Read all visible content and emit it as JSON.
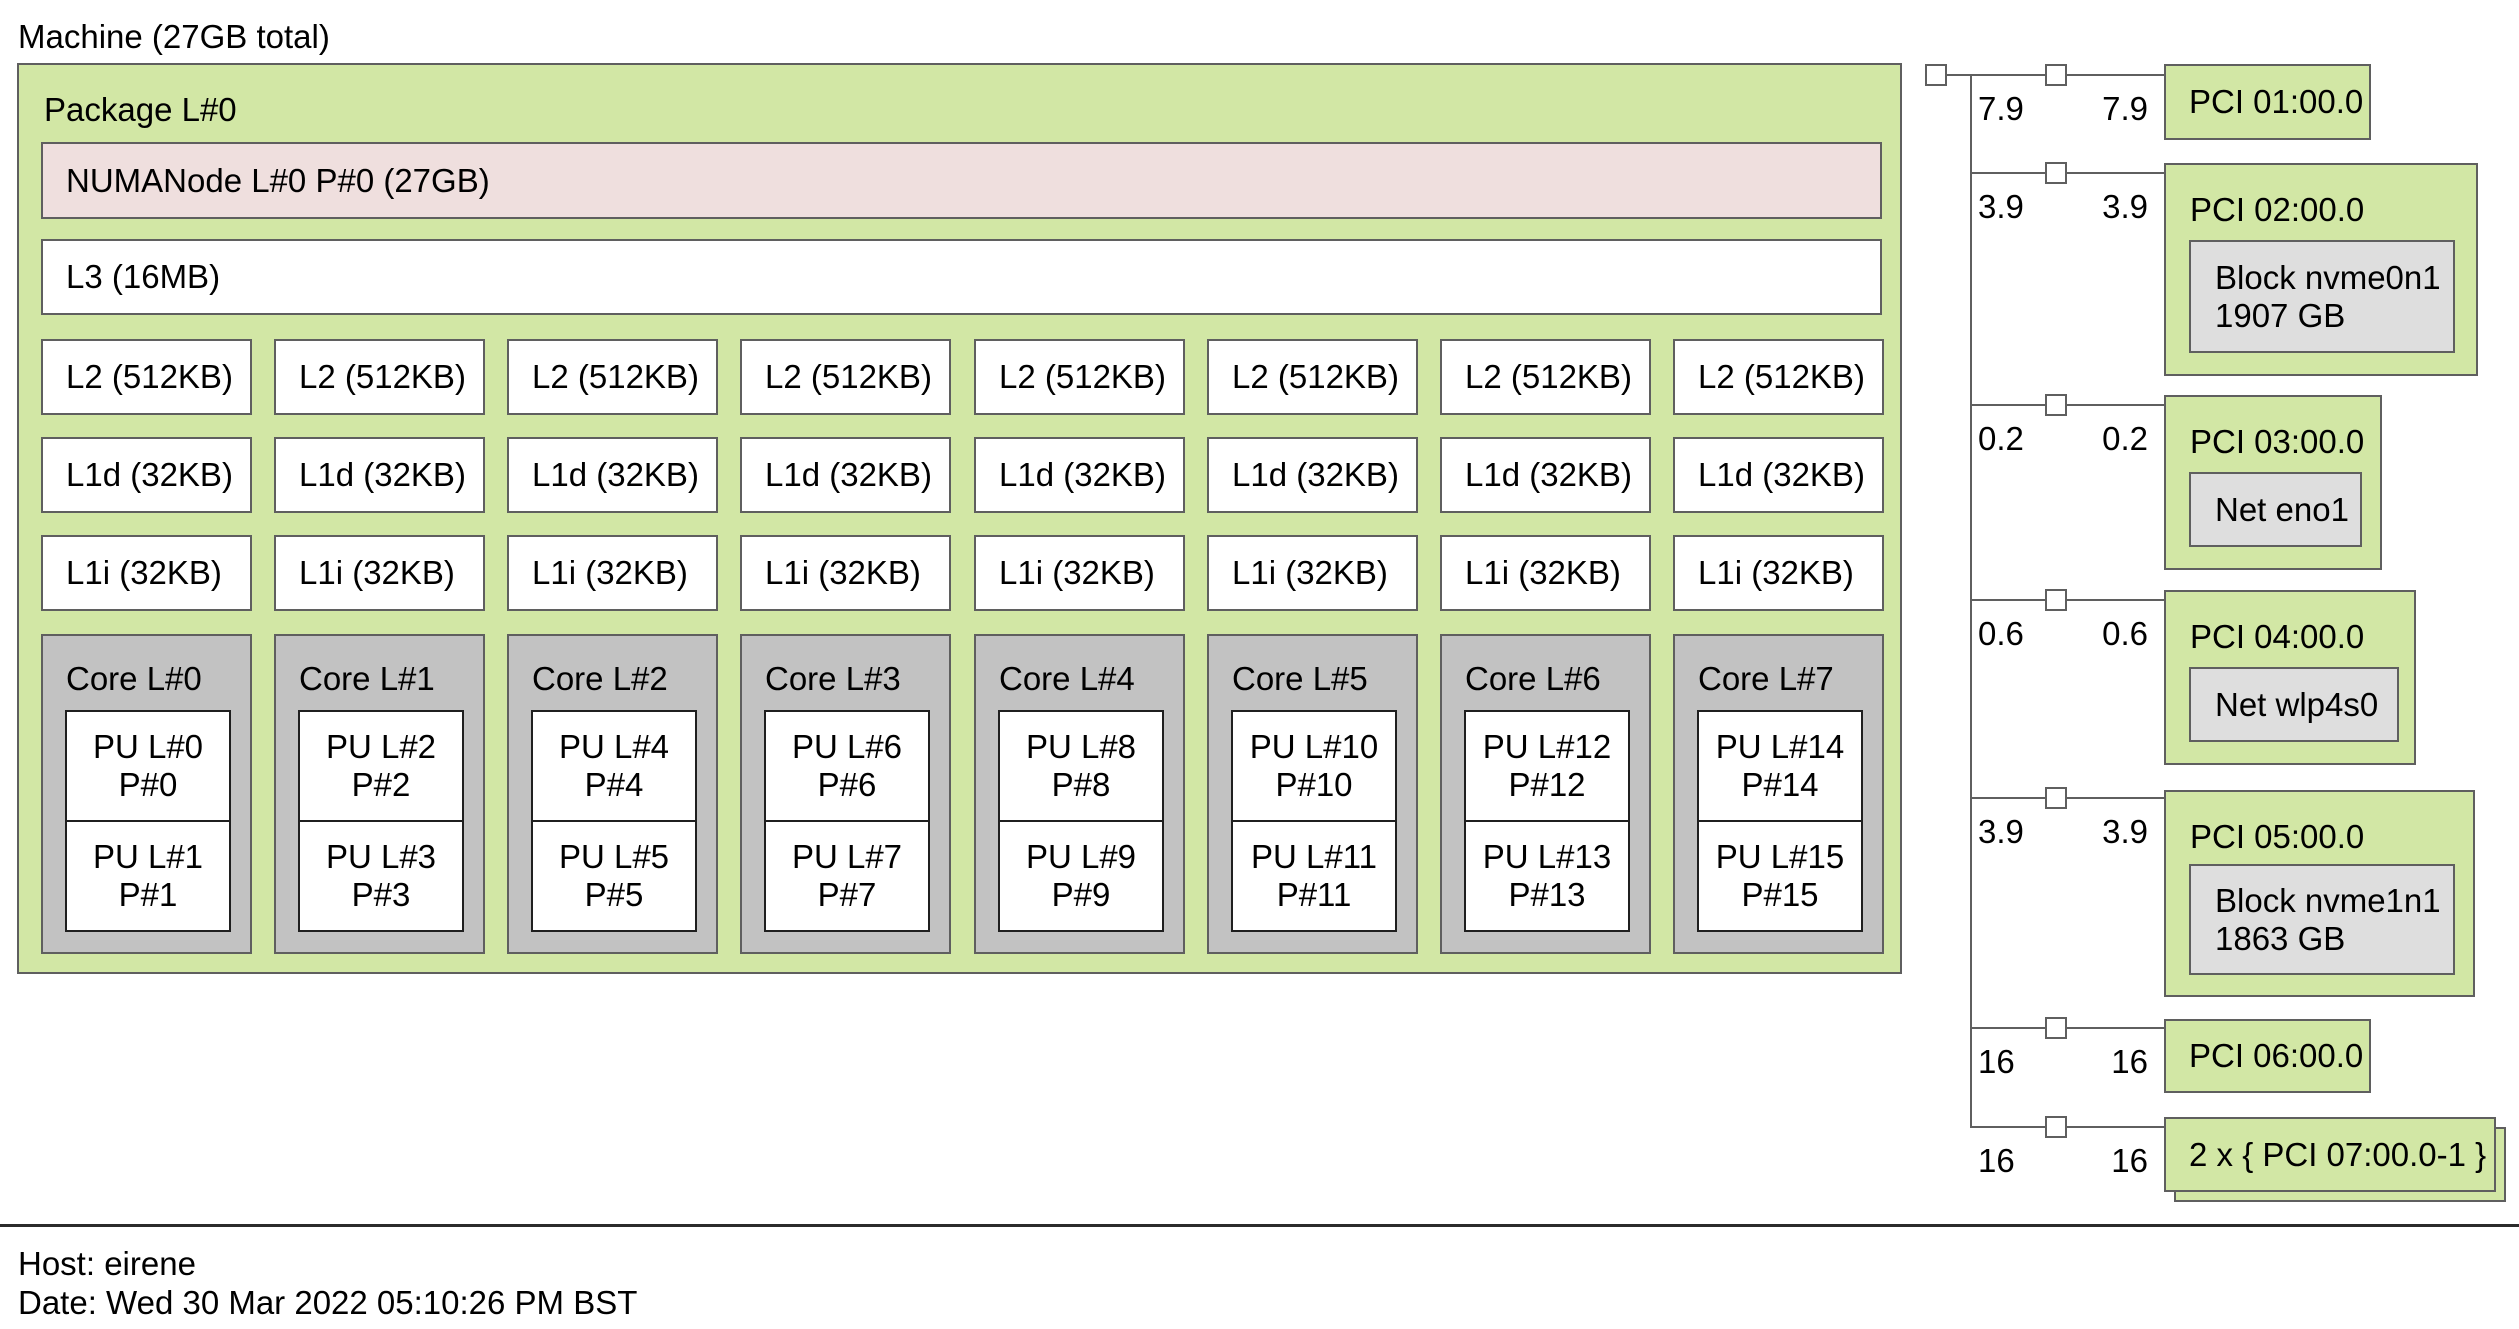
{
  "machine": {
    "label": "Machine (27GB total)"
  },
  "package": {
    "label": "Package L#0",
    "numanode_label": "NUMANode L#0 P#0 (27GB)",
    "l3_label": "L3 (16MB)"
  },
  "columns": [
    {
      "l2": "L2 (512KB)",
      "l1d": "L1d (32KB)",
      "l1i": "L1i (32KB)",
      "core": "Core L#0",
      "pu_top_line1": "PU L#0",
      "pu_top_line2": "P#0",
      "pu_bottom_line1": "PU L#1",
      "pu_bottom_line2": "P#1"
    },
    {
      "l2": "L2 (512KB)",
      "l1d": "L1d (32KB)",
      "l1i": "L1i (32KB)",
      "core": "Core L#1",
      "pu_top_line1": "PU L#2",
      "pu_top_line2": "P#2",
      "pu_bottom_line1": "PU L#3",
      "pu_bottom_line2": "P#3"
    },
    {
      "l2": "L2 (512KB)",
      "l1d": "L1d (32KB)",
      "l1i": "L1i (32KB)",
      "core": "Core L#2",
      "pu_top_line1": "PU L#4",
      "pu_top_line2": "P#4",
      "pu_bottom_line1": "PU L#5",
      "pu_bottom_line2": "P#5"
    },
    {
      "l2": "L2 (512KB)",
      "l1d": "L1d (32KB)",
      "l1i": "L1i (32KB)",
      "core": "Core L#3",
      "pu_top_line1": "PU L#6",
      "pu_top_line2": "P#6",
      "pu_bottom_line1": "PU L#7",
      "pu_bottom_line2": "P#7"
    },
    {
      "l2": "L2 (512KB)",
      "l1d": "L1d (32KB)",
      "l1i": "L1i (32KB)",
      "core": "Core L#4",
      "pu_top_line1": "PU L#8",
      "pu_top_line2": "P#8",
      "pu_bottom_line1": "PU L#9",
      "pu_bottom_line2": "P#9"
    },
    {
      "l2": "L2 (512KB)",
      "l1d": "L1d (32KB)",
      "l1i": "L1i (32KB)",
      "core": "Core L#5",
      "pu_top_line1": "PU L#10",
      "pu_top_line2": "P#10",
      "pu_bottom_line1": "PU L#11",
      "pu_bottom_line2": "P#11"
    },
    {
      "l2": "L2 (512KB)",
      "l1d": "L1d (32KB)",
      "l1i": "L1i (32KB)",
      "core": "Core L#6",
      "pu_top_line1": "PU L#12",
      "pu_top_line2": "P#12",
      "pu_bottom_line1": "PU L#13",
      "pu_bottom_line2": "P#13"
    },
    {
      "l2": "L2 (512KB)",
      "l1d": "L1d (32KB)",
      "l1i": "L1i (32KB)",
      "core": "Core L#7",
      "pu_top_line1": "PU L#14",
      "pu_top_line2": "P#14",
      "pu_bottom_line1": "PU L#15",
      "pu_bottom_line2": "P#15"
    }
  ],
  "pci": {
    "branches": [
      {
        "speed_left": "7.9",
        "speed_right": "7.9",
        "label": "PCI 01:00.0",
        "device_lines": []
      },
      {
        "speed_left": "3.9",
        "speed_right": "3.9",
        "label": "PCI 02:00.0",
        "device_lines": [
          "Block nvme0n1",
          "1907 GB"
        ]
      },
      {
        "speed_left": "0.2",
        "speed_right": "0.2",
        "label": "PCI 03:00.0",
        "device_lines": [
          "Net eno1"
        ]
      },
      {
        "speed_left": "0.6",
        "speed_right": "0.6",
        "label": "PCI 04:00.0",
        "device_lines": [
          "Net wlp4s0"
        ]
      },
      {
        "speed_left": "3.9",
        "speed_right": "3.9",
        "label": "PCI 05:00.0",
        "device_lines": [
          "Block nvme1n1",
          "1863 GB"
        ]
      },
      {
        "speed_left": "16",
        "speed_right": "16",
        "label": "PCI 06:00.0",
        "device_lines": []
      },
      {
        "speed_left": "16",
        "speed_right": "16",
        "label": "2 x { PCI 07:00.0-1 }",
        "device_lines": []
      }
    ]
  },
  "legend": {
    "host": "Host: eirene",
    "date": "Date: Wed 30 Mar 2022 05:10:26 PM BST"
  },
  "colors": {
    "package_green": "#d2e7a5",
    "numanode_pink": "#efdfde",
    "core_gray": "#c2c2c2",
    "device_gray": "#dedede"
  }
}
